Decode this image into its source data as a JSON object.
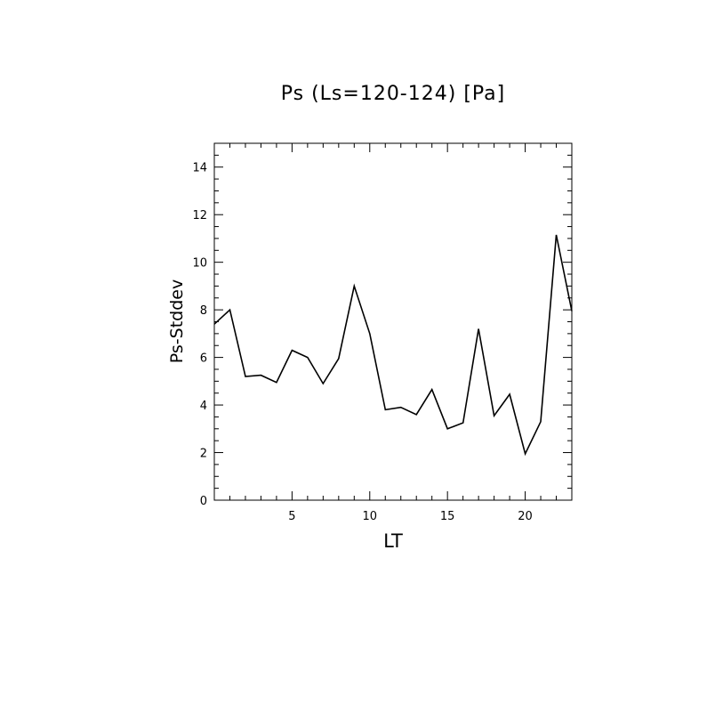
{
  "chart_data": {
    "type": "line",
    "title": "Ps (Ls=120-124) [Pa]",
    "xlabel": "LT",
    "ylabel": "Ps-Stddev",
    "xlim": [
      0,
      23
    ],
    "ylim": [
      0,
      15
    ],
    "x_ticks": [
      5,
      10,
      15,
      20
    ],
    "y_ticks": [
      0,
      2,
      4,
      6,
      8,
      10,
      12,
      14
    ],
    "grid": false,
    "legend": "none",
    "line_color": "#000000",
    "series": [
      {
        "x": [
          0,
          1,
          2,
          3,
          4,
          5,
          6,
          7,
          8,
          9,
          10,
          11,
          12,
          13,
          14,
          15,
          16,
          17,
          18,
          19,
          20,
          21,
          22,
          23
        ],
        "values": [
          7.4,
          8.0,
          5.2,
          5.25,
          4.95,
          6.3,
          6.0,
          4.9,
          5.95,
          9.0,
          7.0,
          3.8,
          3.9,
          3.6,
          4.65,
          3.0,
          3.25,
          7.2,
          3.55,
          4.45,
          1.95,
          3.3,
          11.15,
          7.95
        ]
      }
    ]
  }
}
